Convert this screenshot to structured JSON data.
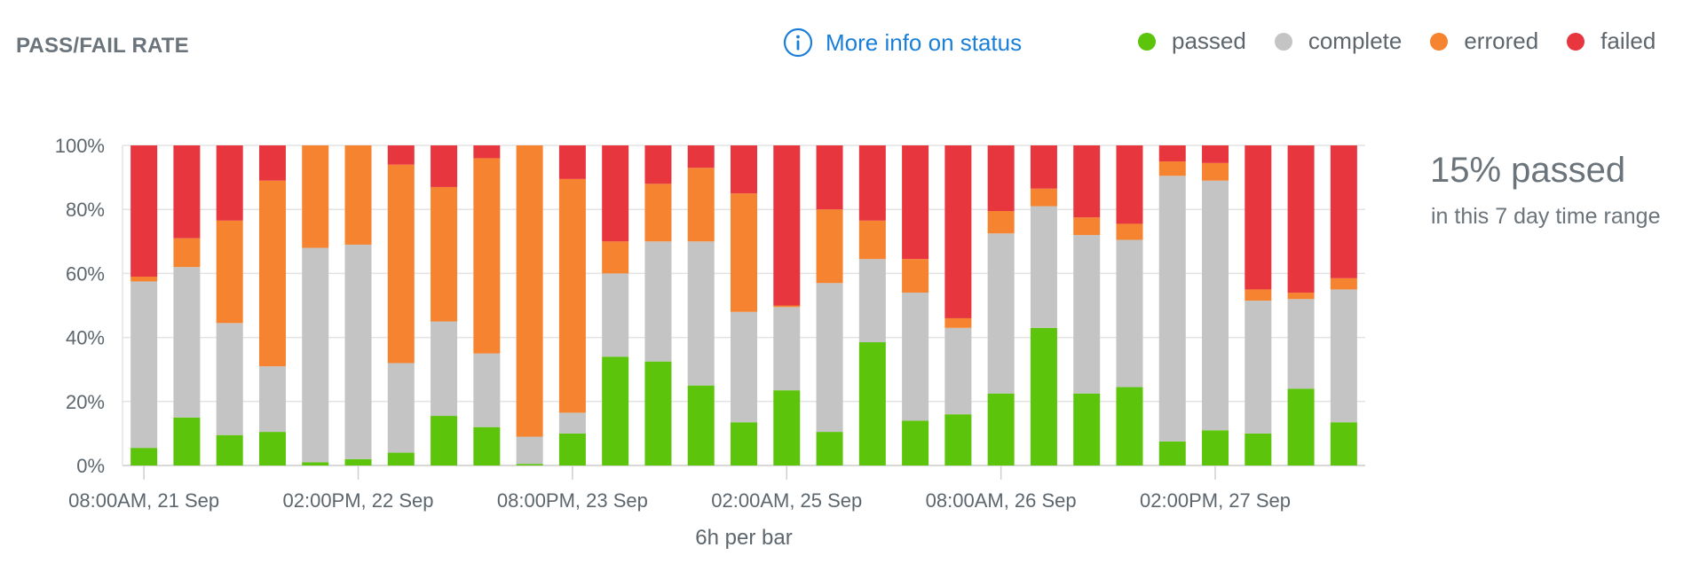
{
  "header": {
    "title": "PASS/FAIL RATE",
    "info_link": "More info on status"
  },
  "legend": [
    {
      "label": "passed",
      "color": "#5cc40a"
    },
    {
      "label": "complete",
      "color": "#c4c4c4"
    },
    {
      "label": "errored",
      "color": "#f5832f"
    },
    {
      "label": "failed",
      "color": "#e8363f"
    }
  ],
  "summary": {
    "headline": "15% passed",
    "subtext": "in this 7 day time range"
  },
  "chart_data": {
    "type": "bar",
    "stacked": true,
    "ylim": [
      0,
      100
    ],
    "y_ticks": [
      "0%",
      "20%",
      "40%",
      "60%",
      "80%",
      "100%"
    ],
    "x_tick_labels": [
      {
        "bar_index": 0,
        "label": "08:00AM, 21 Sep"
      },
      {
        "bar_index": 5,
        "label": "02:00PM, 22 Sep"
      },
      {
        "bar_index": 10,
        "label": "08:00PM, 23 Sep"
      },
      {
        "bar_index": 15,
        "label": "02:00AM, 25 Sep"
      },
      {
        "bar_index": 20,
        "label": "08:00AM, 26 Sep"
      },
      {
        "bar_index": 25,
        "label": "02:00PM, 27 Sep"
      }
    ],
    "xlabel": "6h per bar",
    "grid": true,
    "series": [
      {
        "name": "passed",
        "color": "#5cc40a",
        "values": [
          5.5,
          15,
          9.5,
          10.5,
          1,
          2,
          4,
          15.5,
          12,
          0.5,
          10,
          34,
          32.5,
          25,
          13.5,
          23.5,
          10.5,
          38.5,
          14,
          16,
          22.5,
          43,
          22.5,
          24.5,
          7.5,
          11,
          10,
          24,
          13.5
        ]
      },
      {
        "name": "complete",
        "color": "#c4c4c4",
        "values": [
          52,
          47,
          35,
          20.5,
          67,
          67,
          28,
          29.5,
          23,
          8.5,
          6.5,
          26,
          37.5,
          45,
          34.5,
          26,
          46.5,
          26,
          40,
          27,
          50,
          38,
          49.5,
          46,
          83,
          78,
          41.5,
          28,
          41.5
        ]
      },
      {
        "name": "errored",
        "color": "#f5832f",
        "values": [
          1.5,
          9,
          32,
          58,
          32,
          31,
          62,
          42,
          61,
          91,
          73,
          10,
          18,
          23,
          37,
          0.5,
          23,
          12,
          10.5,
          3,
          7,
          5.5,
          5.5,
          5,
          4.5,
          5.5,
          3.5,
          2,
          3.5
        ]
      },
      {
        "name": "failed",
        "color": "#e8363f",
        "values": [
          41,
          29,
          23.5,
          11,
          0,
          0,
          6,
          13,
          4,
          0,
          10.5,
          30,
          12,
          7,
          15,
          50,
          20,
          23.5,
          35.5,
          54,
          20.5,
          13.5,
          22.5,
          24.5,
          5,
          5.5,
          45,
          46,
          41.5
        ]
      }
    ]
  }
}
